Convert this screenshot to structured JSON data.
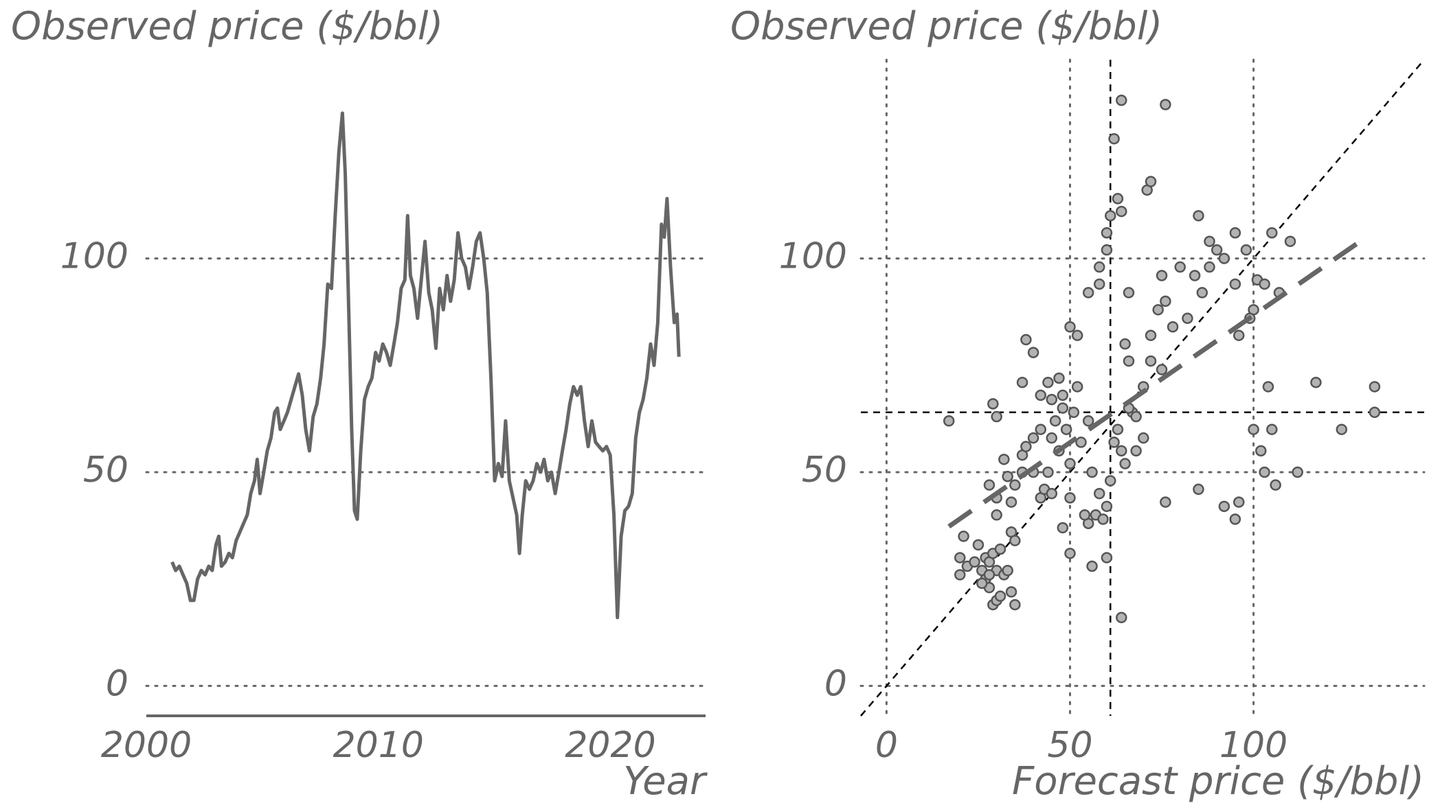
{
  "chart_data": [
    {
      "type": "line",
      "title": "Observed price ($/bbl)",
      "xlabel": "Year",
      "x": [
        2001.11,
        2001.26,
        2001.42,
        2001.58,
        2001.74,
        2001.9,
        2002.05,
        2002.21,
        2002.37,
        2002.53,
        2002.69,
        2002.84,
        2003.0,
        2003.12,
        2003.24,
        2003.4,
        2003.56,
        2003.71,
        2003.87,
        2004.03,
        2004.19,
        2004.35,
        2004.5,
        2004.66,
        2004.78,
        2004.9,
        2005.06,
        2005.21,
        2005.37,
        2005.53,
        2005.65,
        2005.77,
        2005.93,
        2006.08,
        2006.24,
        2006.4,
        2006.56,
        2006.72,
        2006.87,
        2007.03,
        2007.19,
        2007.35,
        2007.51,
        2007.66,
        2007.82,
        2007.98,
        2008.14,
        2008.3,
        2008.45,
        2008.57,
        2008.69,
        2008.85,
        2008.97,
        2009.09,
        2009.24,
        2009.4,
        2009.56,
        2009.72,
        2009.88,
        2010.03,
        2010.19,
        2010.35,
        2010.51,
        2010.67,
        2010.82,
        2010.98,
        2011.14,
        2011.26,
        2011.38,
        2011.53,
        2011.69,
        2011.85,
        2012.01,
        2012.17,
        2012.32,
        2012.48,
        2012.64,
        2012.8,
        2012.96,
        2013.11,
        2013.27,
        2013.43,
        2013.59,
        2013.75,
        2013.9,
        2014.06,
        2014.22,
        2014.38,
        2014.54,
        2014.69,
        2014.85,
        2015.01,
        2015.17,
        2015.33,
        2015.48,
        2015.64,
        2015.8,
        2015.96,
        2016.08,
        2016.2,
        2016.35,
        2016.51,
        2016.67,
        2016.83,
        2016.99,
        2017.14,
        2017.3,
        2017.46,
        2017.62,
        2017.78,
        2017.93,
        2018.09,
        2018.25,
        2018.41,
        2018.57,
        2018.72,
        2018.88,
        2019.04,
        2019.2,
        2019.36,
        2019.51,
        2019.67,
        2019.83,
        2019.99,
        2020.15,
        2020.3,
        2020.46,
        2020.62,
        2020.78,
        2020.94,
        2021.09,
        2021.25,
        2021.41,
        2021.57,
        2021.73,
        2021.88,
        2022.04,
        2022.2,
        2022.32,
        2022.44,
        2022.59,
        2022.75,
        2022.87,
        2022.95
      ],
      "values": [
        29,
        27,
        28,
        26,
        24,
        20,
        20,
        25,
        27,
        26,
        28,
        27,
        33,
        35,
        28,
        29,
        31,
        30,
        34,
        36,
        38,
        40,
        45,
        48,
        53,
        45,
        50,
        55,
        58,
        64,
        65,
        60,
        62,
        64,
        67,
        70,
        73,
        68,
        60,
        55,
        63,
        66,
        72,
        80,
        94,
        93,
        110,
        125,
        134,
        120,
        95,
        60,
        41,
        39,
        55,
        67,
        70,
        72,
        78,
        76,
        80,
        78,
        75,
        80,
        85,
        93,
        95,
        110,
        96,
        93,
        86,
        95,
        104,
        92,
        88,
        79,
        93,
        88,
        96,
        90,
        95,
        106,
        100,
        98,
        93,
        98,
        104,
        106,
        100,
        92,
        72,
        48,
        52,
        49,
        62,
        48,
        44,
        40,
        31,
        40,
        48,
        46,
        48,
        52,
        50,
        53,
        48,
        50,
        45,
        50,
        55,
        60,
        66,
        70,
        68,
        70,
        62,
        56,
        62,
        57,
        56,
        55,
        56,
        54,
        40,
        16,
        35,
        41,
        42,
        45,
        58,
        64,
        67,
        72,
        80,
        75,
        85,
        108,
        105,
        114,
        98,
        85,
        87,
        77
      ],
      "color": "#666666",
      "xlim": [
        2000,
        2024.1
      ],
      "xticks": [
        2000,
        2010,
        2020
      ],
      "ylim": [
        -7,
        146.5
      ],
      "yticks": [
        0,
        50,
        100
      ],
      "grid": "y"
    },
    {
      "type": "scatter",
      "title": "Observed price ($/bbl)",
      "xlabel": "Forecast price ($/bbl)",
      "x": [
        20,
        20,
        21,
        22,
        25,
        26,
        27,
        27,
        28,
        28,
        29,
        29,
        30,
        30,
        31,
        31,
        32,
        33,
        34,
        34,
        35,
        35,
        24,
        26,
        28,
        17,
        29,
        30,
        28,
        30,
        30,
        32,
        33,
        34,
        35,
        37,
        37,
        38,
        40,
        40,
        42,
        42,
        43,
        44,
        45,
        45,
        46,
        47,
        48,
        49,
        50,
        50,
        51,
        52,
        53,
        55,
        55,
        56,
        57,
        58,
        59,
        60,
        61,
        62,
        63,
        64,
        65,
        67,
        68,
        70,
        70,
        72,
        37,
        38,
        40,
        42,
        44,
        45,
        47,
        48,
        50,
        52,
        55,
        58,
        58,
        60,
        60,
        61,
        62,
        63,
        64,
        66,
        65,
        66,
        71,
        72,
        64,
        76,
        72,
        74,
        75,
        76,
        78,
        80,
        82,
        84,
        85,
        86,
        88,
        88,
        90,
        92,
        95,
        95,
        98,
        100,
        101,
        103,
        105,
        107,
        110,
        96,
        99,
        100,
        102,
        103,
        104,
        105,
        106,
        112,
        117,
        124,
        133,
        133,
        85,
        76,
        92,
        95,
        96,
        48,
        50,
        60,
        64,
        56,
        54,
        66,
        68,
        75
      ],
      "values": [
        26,
        30,
        35,
        28,
        33,
        27,
        30,
        25,
        29,
        23,
        31,
        19,
        20,
        27,
        21,
        32,
        26,
        27,
        22,
        36,
        19,
        34,
        29,
        24,
        26,
        62,
        66,
        63,
        47,
        40,
        44,
        53,
        49,
        43,
        47,
        50,
        54,
        56,
        50,
        58,
        60,
        44,
        46,
        50,
        45,
        58,
        62,
        55,
        65,
        60,
        44,
        52,
        64,
        70,
        57,
        62,
        38,
        50,
        40,
        45,
        39,
        42,
        48,
        57,
        60,
        55,
        52,
        64,
        55,
        58,
        70,
        76,
        71,
        81,
        78,
        68,
        71,
        67,
        72,
        68,
        84,
        82,
        92,
        94,
        98,
        102,
        106,
        110,
        128,
        114,
        111,
        92,
        80,
        76,
        116,
        118,
        137,
        136,
        82,
        88,
        96,
        90,
        84,
        98,
        86,
        96,
        110,
        92,
        98,
        104,
        102,
        100,
        106,
        94,
        102,
        88,
        95,
        94,
        106,
        92,
        104,
        82,
        86,
        60,
        55,
        50,
        70,
        60,
        47,
        50,
        71,
        60,
        70,
        64,
        46,
        43,
        42,
        39,
        43,
        37,
        31,
        30,
        16,
        28,
        40,
        65,
        63,
        74
      ],
      "color": "#b3b3b3",
      "xlim": [
        -7,
        146.5
      ],
      "xticks": [
        0,
        50,
        100
      ],
      "ylim": [
        -7,
        146.5
      ],
      "yticks": [
        0,
        50,
        100
      ],
      "grid": "xy",
      "x_reference": 61,
      "y_reference": 64,
      "identity_line": true,
      "fit_line": {
        "x": [
          17,
          130.75
        ],
        "values": [
          37.3,
          105
        ]
      }
    }
  ]
}
